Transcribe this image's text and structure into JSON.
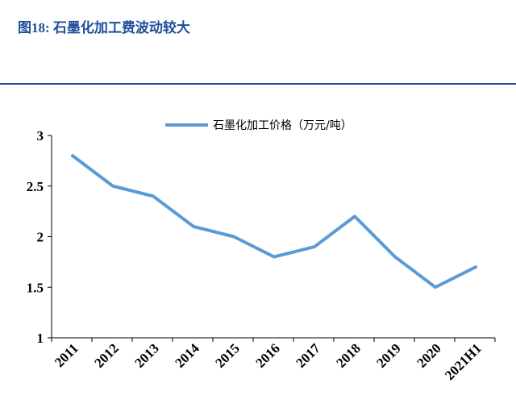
{
  "figure": {
    "title": "图18: 石墨化加工费波动较大"
  },
  "colors": {
    "title": "#1f4e99",
    "series_line": "#5b9bd5",
    "axis": "#000000"
  },
  "chart_data": {
    "type": "line",
    "title": "",
    "xlabel": "",
    "ylabel": "",
    "categories": [
      "2011",
      "2012",
      "2013",
      "2014",
      "2015",
      "2016",
      "2017",
      "2018",
      "2019",
      "2020",
      "2021H1"
    ],
    "series": [
      {
        "name": "石墨化加工价格（万元/吨）",
        "values": [
          2.8,
          2.5,
          2.4,
          2.1,
          2.0,
          1.8,
          1.9,
          2.2,
          1.8,
          1.5,
          1.7
        ]
      }
    ],
    "ylim": [
      1,
      3
    ],
    "yticks": [
      "1",
      "1.5",
      "2",
      "2.5",
      "3"
    ],
    "grid": false,
    "legend": "top-center"
  }
}
